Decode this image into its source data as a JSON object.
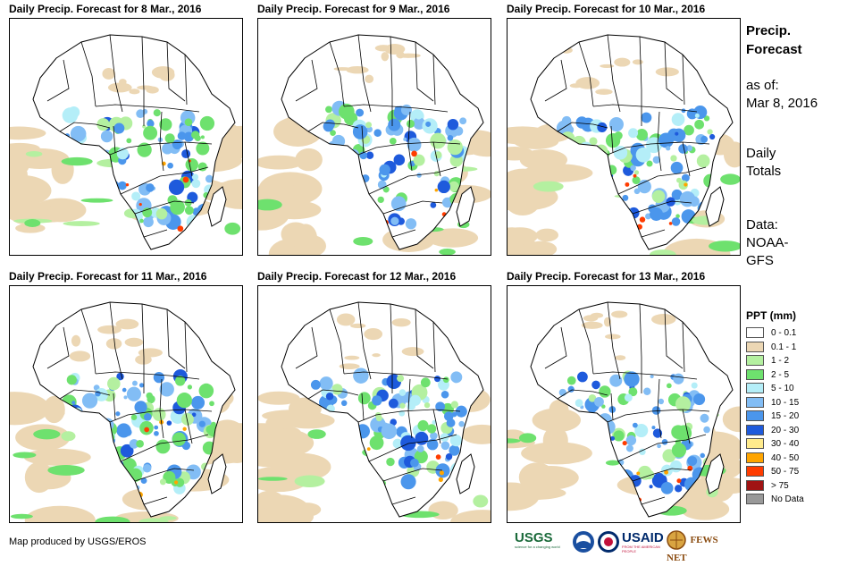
{
  "panels": [
    {
      "title": "Daily Precip. Forecast for 8 Mar., 2016",
      "variant": 0
    },
    {
      "title": "Daily Precip. Forecast for 9 Mar., 2016",
      "variant": 1
    },
    {
      "title": "Daily Precip. Forecast for 10 Mar., 2016",
      "variant": 2
    },
    {
      "title": "Daily Precip. Forecast for 11 Mar., 2016",
      "variant": 3
    },
    {
      "title": "Daily Precip. Forecast for 12 Mar., 2016",
      "variant": 4
    },
    {
      "title": "Daily Precip. Forecast for 13 Mar., 2016",
      "variant": 5
    }
  ],
  "side": {
    "title_line1": "Precip.",
    "title_line2": "Forecast",
    "asof_label": "as of:",
    "asof_date": "Mar 8, 2016",
    "daily_line1": "Daily",
    "daily_line2": "Totals",
    "data_line1": "Data:",
    "data_line2": "NOAA-",
    "data_line3": "GFS"
  },
  "legend": {
    "title": "PPT (mm)",
    "items": [
      {
        "label": "0 - 0.1",
        "color": "#ffffff"
      },
      {
        "label": "0.1 - 1",
        "color": "#ecd7b4"
      },
      {
        "label": "1 - 2",
        "color": "#b4f0a0"
      },
      {
        "label": "2 - 5",
        "color": "#6ee16e"
      },
      {
        "label": "5 - 10",
        "color": "#b4eef8"
      },
      {
        "label": "10 - 15",
        "color": "#82bdf5"
      },
      {
        "label": "15 - 20",
        "color": "#4b96ec"
      },
      {
        "label": "20 - 30",
        "color": "#1e5adc"
      },
      {
        "label": "30 - 40",
        "color": "#ffeb8c"
      },
      {
        "label": "40 - 50",
        "color": "#ffa500"
      },
      {
        "label": "50 - 75",
        "color": "#ff3c00"
      },
      {
        "label": "> 75",
        "color": "#a01414"
      },
      {
        "label": "No Data",
        "color": "#999999"
      }
    ]
  },
  "credit": "Map produced by USGS/EROS",
  "logos": {
    "usgs": "USGS",
    "usgs_tagline": "science for a changing world",
    "noaa": "NOAA",
    "usaid": "USAID",
    "usaid_tagline": "FROM THE AMERICAN PEOPLE",
    "fewsnet": "FEWS NET"
  }
}
